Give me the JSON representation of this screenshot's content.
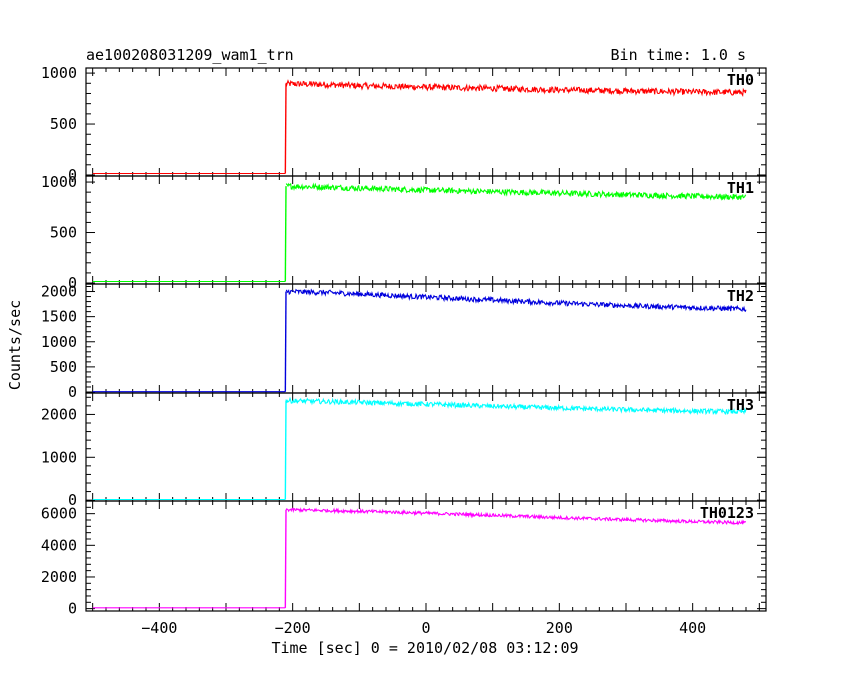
{
  "chart_data": {
    "type": "line",
    "title": "ae100208031209_wam1_trn",
    "subtitle": "Bin time: 1.0 s",
    "xlabel": "Time [sec] 0 = 2010/02/08 03:12:09",
    "ylabel": "Counts/sec",
    "xlim": [
      -510,
      510
    ],
    "x_ticks": [
      -400,
      -200,
      0,
      200,
      400
    ],
    "x_ticks_labels": [
      "−400",
      "−200",
      "0",
      "200",
      "400"
    ],
    "x_start": -500,
    "x_end": 480,
    "panels": [
      {
        "name": "TH0",
        "color": "#ff0000",
        "ylim": [
          -10,
          1050
        ],
        "y_ticks": [
          0,
          500,
          1000
        ],
        "y_tick_labels": [
          "0",
          "500",
          "1000"
        ],
        "series": [
          {
            "x": [
              -500,
              -211
            ],
            "y": [
              15,
              15
            ]
          },
          {
            "x": [
              -210,
              -150,
              -100,
              -50,
              0,
              100,
              200,
              300,
              400,
              480
            ],
            "y": [
              895,
              888,
              875,
              870,
              862,
              850,
              835,
              825,
              815,
              810
            ]
          }
        ],
        "noise": 30
      },
      {
        "name": "TH1",
        "color": "#00ff00",
        "ylim": [
          -10,
          1060
        ],
        "y_ticks": [
          0,
          500,
          1000
        ],
        "y_tick_labels": [
          "0",
          "500",
          "1000"
        ],
        "series": [
          {
            "x": [
              -500,
              -211
            ],
            "y": [
              15,
              15
            ]
          },
          {
            "x": [
              -210,
              -150,
              -100,
              -50,
              0,
              100,
              200,
              300,
              400,
              480
            ],
            "y": [
              960,
              950,
              940,
              930,
              920,
              905,
              890,
              875,
              860,
              850
            ]
          }
        ],
        "noise": 28
      },
      {
        "name": "TH2",
        "color": "#0000dd",
        "ylim": [
          -20,
          2150
        ],
        "y_ticks": [
          0,
          500,
          1000,
          1500,
          2000
        ],
        "y_tick_labels": [
          "0",
          "500",
          "1000",
          "1500",
          "2000"
        ],
        "series": [
          {
            "x": [
              -500,
              -211
            ],
            "y": [
              5,
              5
            ]
          },
          {
            "x": [
              -210,
              -150,
              -100,
              -50,
              0,
              100,
              200,
              300,
              400,
              480
            ],
            "y": [
              2000,
              1980,
              1950,
              1920,
              1890,
              1830,
              1770,
              1720,
              1680,
              1650
            ]
          }
        ],
        "noise": 50
      },
      {
        "name": "TH3",
        "color": "#00ffff",
        "ylim": [
          -20,
          2500
        ],
        "y_ticks": [
          0,
          1000,
          2000
        ],
        "y_tick_labels": [
          "0",
          "1000",
          "2000"
        ],
        "series": [
          {
            "x": [
              -500,
              -211
            ],
            "y": [
              15,
              15
            ]
          },
          {
            "x": [
              -210,
              -150,
              -100,
              -50,
              0,
              100,
              200,
              300,
              400,
              480
            ],
            "y": [
              2320,
              2300,
              2280,
              2260,
              2240,
              2190,
              2150,
              2110,
              2080,
              2060
            ]
          }
        ],
        "noise": 55
      },
      {
        "name": "TH0123",
        "color": "#ff00ff",
        "ylim": [
          -150,
          6800
        ],
        "y_ticks": [
          0,
          2000,
          4000,
          6000
        ],
        "y_tick_labels": [
          "0",
          "2000",
          "4000",
          "6000"
        ],
        "series": [
          {
            "x": [
              -500,
              -211
            ],
            "y": [
              50,
              50
            ]
          },
          {
            "x": [
              -210,
              -150,
              -100,
              -50,
              0,
              100,
              200,
              300,
              400,
              480
            ],
            "y": [
              6250,
              6200,
              6150,
              6100,
              6030,
              5900,
              5750,
              5620,
              5500,
              5420
            ]
          }
        ],
        "noise": 100
      }
    ]
  }
}
